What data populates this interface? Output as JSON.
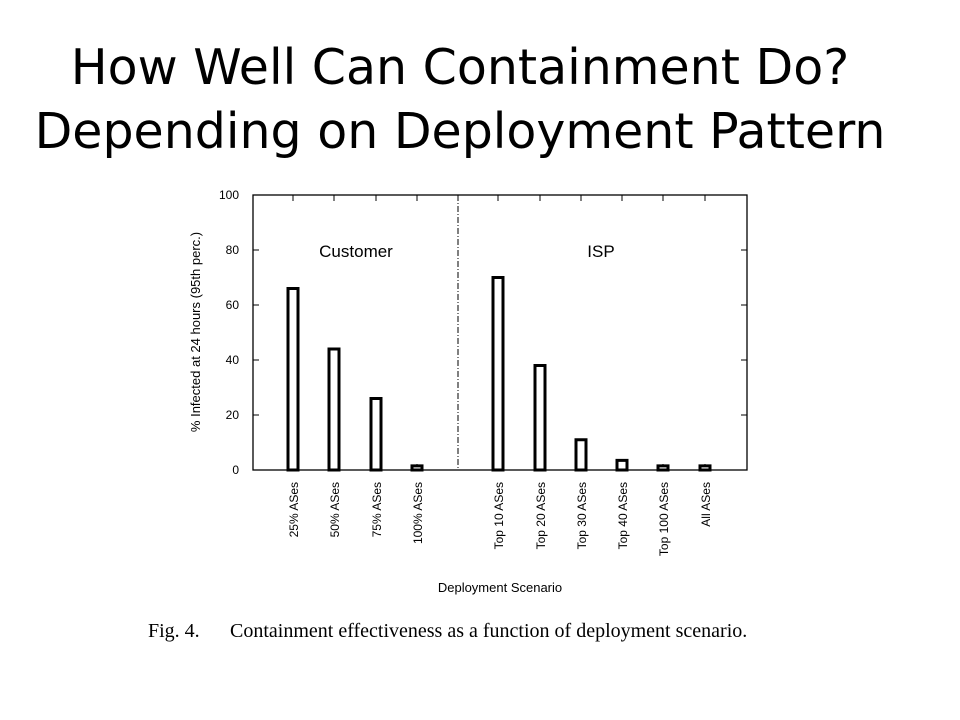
{
  "title": {
    "line1": "How Well Can Containment Do?",
    "line2": "Depending on Deployment Pattern"
  },
  "caption": {
    "label": "Fig. 4.",
    "text": "Containment effectiveness as a function of deployment scenario."
  },
  "chart_data": {
    "type": "bar",
    "categories": [
      "25% ASes",
      "50% ASes",
      "75% ASes",
      "100% ASes",
      "Top 10 ASes",
      "Top 20 ASes",
      "Top 30 ASes",
      "Top 40 ASes",
      "Top 100 ASes",
      "All ASes"
    ],
    "values": [
      66,
      44,
      26,
      1.5,
      70,
      38,
      11,
      3.5,
      1.5,
      1.5
    ],
    "groups": [
      {
        "name": "Customer",
        "categories": [
          "25% ASes",
          "50% ASes",
          "75% ASes",
          "100% ASes"
        ]
      },
      {
        "name": "ISP",
        "categories": [
          "Top 10 ASes",
          "Top 20 ASes",
          "Top 30 ASes",
          "Top 40 ASes",
          "Top 100 ASes",
          "All ASes"
        ]
      }
    ],
    "xlabel": "Deployment Scenario",
    "ylabel": "% Infected at 24 hours (95th perc.)",
    "ylim": [
      0,
      100
    ],
    "yticks": [
      0,
      20,
      40,
      60,
      80,
      100
    ],
    "grid": false,
    "legend": "none"
  }
}
